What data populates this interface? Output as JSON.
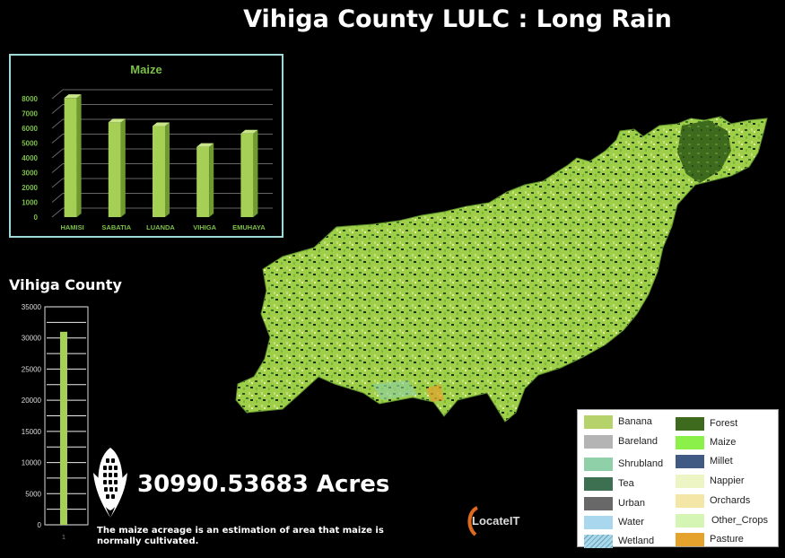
{
  "title": "Vihiga County LULC : Long Rain",
  "chart_data": [
    {
      "type": "bar",
      "title": "Maize",
      "categories": [
        "HAMISI",
        "SABATIA",
        "LUANDA",
        "VIHIGA",
        "EMUHAYA"
      ],
      "values": [
        8050,
        6400,
        6150,
        4750,
        5650
      ],
      "ylim": [
        0,
        8000
      ],
      "yticks": [
        0,
        1000,
        2000,
        3000,
        4000,
        5000,
        6000,
        7000,
        8000
      ],
      "grid": true,
      "bar_color": "#a5cf55"
    },
    {
      "type": "bar",
      "title": "Vihiga County",
      "categories": [
        "1"
      ],
      "values": [
        30990.53683
      ],
      "ylim": [
        0,
        35000
      ],
      "yticks": [
        0,
        5000,
        10000,
        15000,
        20000,
        25000,
        30000,
        35000
      ],
      "grid": true,
      "bar_color": "#a5cf55"
    }
  ],
  "acreage": "30990.53683 Acres",
  "note": "The maize acreage is an estimation of area that maize is normally cultivated.",
  "logo_text": "LocateIT",
  "icons": {
    "corn": "maize-cob-icon",
    "logo": "locateit-logo"
  },
  "legend": [
    {
      "label": "Banana",
      "color": "#b5d36a"
    },
    {
      "label": "Bareland",
      "color": "#b4b4b4"
    },
    {
      "label": "Shrubland",
      "color": "#8fd0a8"
    },
    {
      "label": "Tea",
      "color": "#3c7050"
    },
    {
      "label": "Urban",
      "color": "#686868"
    },
    {
      "label": "Water",
      "color": "#a9d7ee"
    },
    {
      "label": "Wetland",
      "color": "#a8d8ea"
    },
    {
      "label": "Forest",
      "color": "#3d6a1c"
    },
    {
      "label": "Maize",
      "color": "#8cf04a"
    },
    {
      "label": "Millet",
      "color": "#405a84"
    },
    {
      "label": "Nappier",
      "color": "#eef5c4"
    },
    {
      "label": "Orchards",
      "color": "#f3e6a6"
    },
    {
      "label": "Other_Crops",
      "color": "#d4f5b4"
    },
    {
      "label": "Pasture",
      "color": "#e5a22c"
    }
  ]
}
